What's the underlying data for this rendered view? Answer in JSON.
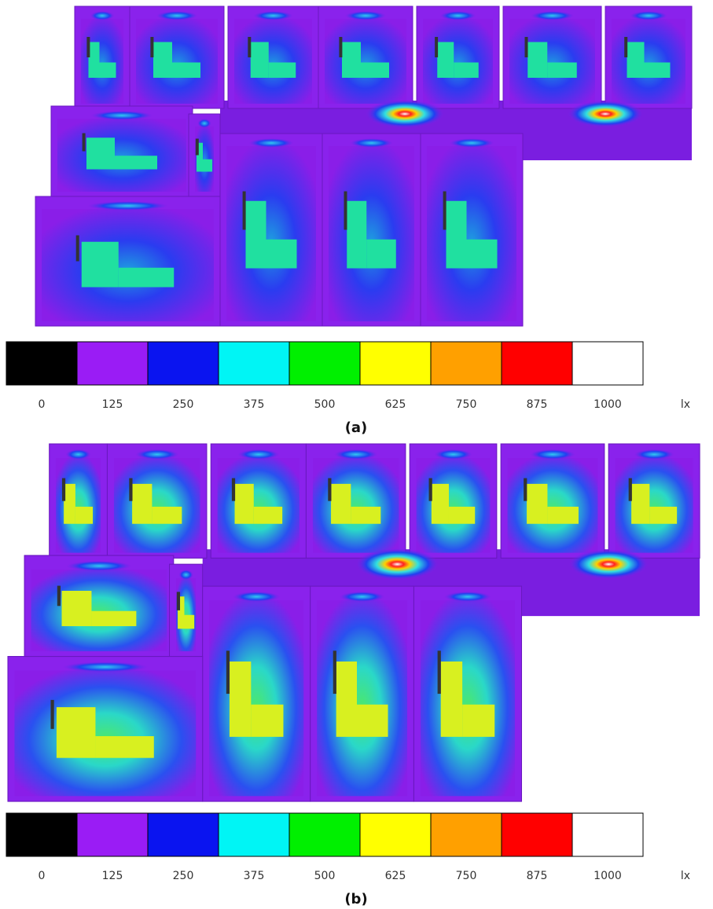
{
  "panels": [
    {
      "caption": "(a)",
      "legend": {
        "unit": "lx",
        "ticks": [
          0,
          125,
          250,
          375,
          500,
          625,
          750,
          875,
          1000
        ],
        "colors": [
          "#000000",
          "#9a1cf5",
          "#0a14f0",
          "#00f5f5",
          "#00f000",
          "#ffff00",
          "#ffa000",
          "#ff0000",
          "#ffffff"
        ]
      }
    },
    {
      "caption": "(b)",
      "legend": {
        "unit": "lx",
        "ticks": [
          0,
          125,
          250,
          375,
          500,
          625,
          750,
          875,
          1000
        ],
        "colors": [
          "#000000",
          "#9a1cf5",
          "#0a14f0",
          "#00f5f5",
          "#00f000",
          "#ffff00",
          "#ffa000",
          "#ff0000",
          "#ffffff"
        ]
      }
    }
  ]
}
